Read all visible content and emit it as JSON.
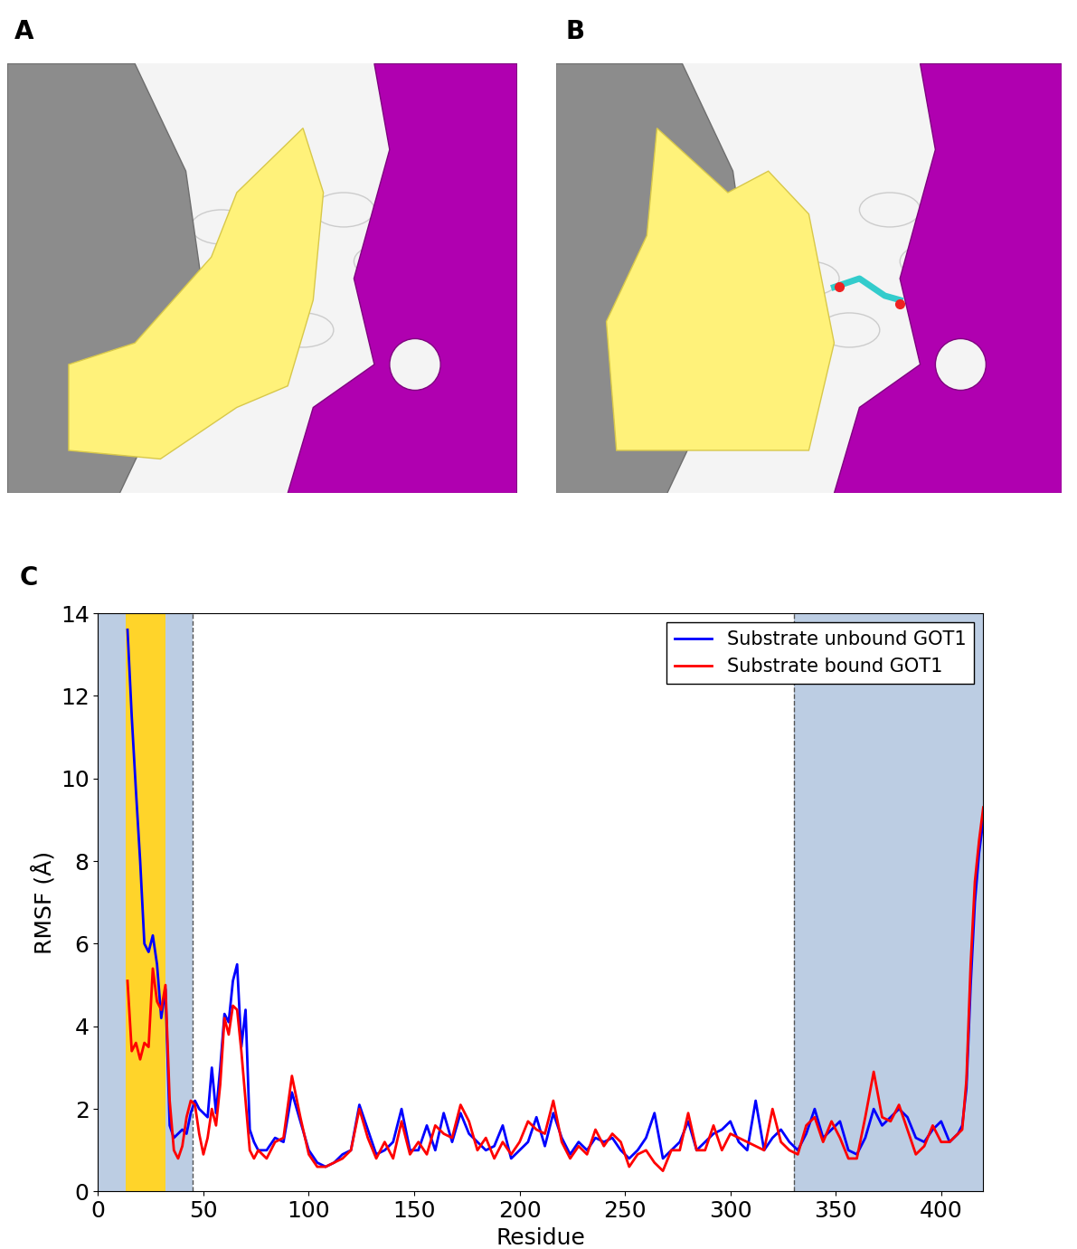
{
  "panel_labels": [
    "A",
    "B",
    "C"
  ],
  "chart_data": {
    "type": "line",
    "xlabel": "Residue",
    "ylabel": "RMSF (Å)",
    "xlim": [
      0,
      420
    ],
    "ylim": [
      0,
      14
    ],
    "xticks": [
      0,
      50,
      100,
      150,
      200,
      250,
      300,
      350,
      400
    ],
    "yticks": [
      0,
      2,
      4,
      6,
      8,
      10,
      12,
      14
    ],
    "legend": "upper right",
    "regions": [
      {
        "start": 0,
        "end": 45,
        "color": "#bccde3"
      },
      {
        "start": 330,
        "end": 420,
        "color": "#bccde3"
      },
      {
        "start": 13,
        "end": 32,
        "color": "#ffd42a"
      }
    ],
    "dashed_lines": [
      45,
      330
    ],
    "x": [
      14,
      16,
      18,
      20,
      22,
      24,
      26,
      28,
      30,
      32,
      34,
      36,
      38,
      40,
      42,
      44,
      46,
      48,
      50,
      52,
      54,
      56,
      58,
      60,
      62,
      64,
      66,
      68,
      70,
      72,
      74,
      76,
      80,
      84,
      88,
      92,
      96,
      100,
      104,
      108,
      112,
      116,
      120,
      124,
      128,
      132,
      136,
      140,
      144,
      148,
      152,
      156,
      160,
      164,
      168,
      172,
      176,
      180,
      184,
      188,
      192,
      196,
      200,
      204,
      208,
      212,
      216,
      220,
      224,
      228,
      232,
      236,
      240,
      244,
      248,
      252,
      256,
      260,
      264,
      268,
      272,
      276,
      280,
      284,
      288,
      292,
      296,
      300,
      304,
      308,
      312,
      316,
      320,
      324,
      328,
      332,
      336,
      340,
      344,
      348,
      352,
      356,
      360,
      364,
      368,
      372,
      376,
      380,
      384,
      388,
      392,
      396,
      400,
      404,
      408,
      410,
      412,
      414,
      416,
      418,
      420
    ],
    "series": [
      {
        "name": "Substrate unbound GOT1",
        "color": "#0000ff",
        "values": [
          13.6,
          11.5,
          9.7,
          8.0,
          6.0,
          5.8,
          6.2,
          5.5,
          4.2,
          4.9,
          1.6,
          1.3,
          1.4,
          1.5,
          1.4,
          1.9,
          2.2,
          2.0,
          1.9,
          1.8,
          3.0,
          1.9,
          3.0,
          4.3,
          4.1,
          5.1,
          5.5,
          3.5,
          4.4,
          1.5,
          1.2,
          1.0,
          1.0,
          1.3,
          1.2,
          2.4,
          1.7,
          1.0,
          0.7,
          0.6,
          0.7,
          0.9,
          1.0,
          2.1,
          1.5,
          0.9,
          1.0,
          1.2,
          2.0,
          1.0,
          1.0,
          1.6,
          1.0,
          1.9,
          1.2,
          1.9,
          1.4,
          1.2,
          1.0,
          1.1,
          1.6,
          0.8,
          1.0,
          1.2,
          1.8,
          1.1,
          1.9,
          1.3,
          0.9,
          1.2,
          1.0,
          1.3,
          1.2,
          1.3,
          1.0,
          0.8,
          1.0,
          1.3,
          1.9,
          0.8,
          1.0,
          1.2,
          1.7,
          1.0,
          1.2,
          1.4,
          1.5,
          1.7,
          1.2,
          1.0,
          2.2,
          1.0,
          1.3,
          1.5,
          1.2,
          1.0,
          1.4,
          2.0,
          1.3,
          1.5,
          1.7,
          1.0,
          0.9,
          1.3,
          2.0,
          1.6,
          1.8,
          2.0,
          1.8,
          1.3,
          1.2,
          1.5,
          1.7,
          1.2,
          1.4,
          1.6,
          2.5,
          5.0,
          7.0,
          8.2,
          9.0
        ]
      },
      {
        "name": "Substrate bound GOT1",
        "color": "#ff0000",
        "values": [
          5.1,
          3.4,
          3.6,
          3.2,
          3.6,
          3.5,
          5.4,
          4.6,
          4.4,
          5.0,
          2.2,
          1.0,
          0.8,
          1.1,
          1.8,
          2.2,
          2.1,
          1.4,
          0.9,
          1.3,
          2.0,
          1.6,
          2.6,
          4.2,
          3.8,
          4.5,
          4.4,
          3.4,
          2.2,
          1.0,
          0.8,
          1.0,
          0.8,
          1.2,
          1.3,
          2.8,
          1.8,
          0.9,
          0.6,
          0.6,
          0.7,
          0.8,
          1.0,
          2.0,
          1.3,
          0.8,
          1.2,
          0.8,
          1.7,
          0.9,
          1.2,
          0.9,
          1.6,
          1.4,
          1.3,
          2.1,
          1.7,
          1.0,
          1.3,
          0.8,
          1.2,
          0.9,
          1.2,
          1.7,
          1.5,
          1.4,
          2.2,
          1.2,
          0.8,
          1.1,
          0.9,
          1.5,
          1.1,
          1.4,
          1.2,
          0.6,
          0.9,
          1.0,
          0.7,
          0.5,
          1.0,
          1.0,
          1.9,
          1.0,
          1.0,
          1.6,
          1.0,
          1.4,
          1.3,
          1.2,
          1.1,
          1.0,
          2.0,
          1.2,
          1.0,
          0.9,
          1.6,
          1.8,
          1.2,
          1.7,
          1.3,
          0.8,
          0.8,
          1.8,
          2.9,
          1.8,
          1.7,
          2.1,
          1.5,
          0.9,
          1.1,
          1.6,
          1.2,
          1.2,
          1.4,
          1.5,
          2.7,
          5.5,
          7.5,
          8.5,
          9.3
        ]
      }
    ]
  }
}
